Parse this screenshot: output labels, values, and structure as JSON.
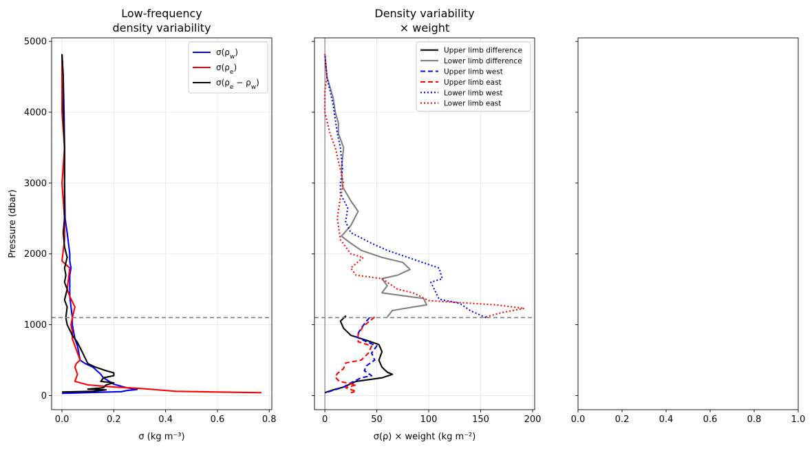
{
  "chart_data": [
    {
      "type": "line",
      "title_lines": [
        "Low-frequency",
        "density variability"
      ],
      "xlabel": "σ (kg m⁻³)",
      "ylabel": "Pressure (dbar)",
      "xlim": [
        -0.04,
        0.81
      ],
      "ylim": [
        -200,
        5050
      ],
      "xticks": [
        0.0,
        0.2,
        0.4,
        0.6,
        0.8
      ],
      "xtick_labels": [
        "0.0",
        "0.2",
        "0.4",
        "0.6",
        "0.8"
      ],
      "yticks": [
        0,
        1000,
        2000,
        3000,
        4000,
        5000
      ],
      "ytick_labels": [
        "0",
        "1000",
        "2000",
        "3000",
        "4000",
        "5000"
      ],
      "grid": true,
      "legend_position": "top-right",
      "hline": {
        "y": 1100,
        "color": "#808080",
        "dash": "dashed"
      },
      "series": [
        {
          "name": "σ(ρw)",
          "legend": {
            "base": "σ(ρ",
            "sub": "w",
            "tail": ")"
          },
          "color": "#0000ff",
          "dash": "solid",
          "points": [
            [
              0.0,
              4820
            ],
            [
              0.005,
              4500
            ],
            [
              0.008,
              4000
            ],
            [
              0.01,
              3500
            ],
            [
              0.01,
              3000
            ],
            [
              0.012,
              2500
            ],
            [
              0.02,
              2300
            ],
            [
              0.03,
              2000
            ],
            [
              0.03,
              1900
            ],
            [
              0.035,
              1800
            ],
            [
              0.03,
              1700
            ],
            [
              0.03,
              1500
            ],
            [
              0.03,
              1400
            ],
            [
              0.035,
              1250
            ],
            [
              0.04,
              1100
            ],
            [
              0.04,
              1000
            ],
            [
              0.045,
              900
            ],
            [
              0.05,
              800
            ],
            [
              0.06,
              700
            ],
            [
              0.065,
              600
            ],
            [
              0.07,
              500
            ],
            [
              0.09,
              450
            ],
            [
              0.12,
              400
            ],
            [
              0.15,
              300
            ],
            [
              0.16,
              250
            ],
            [
              0.2,
              160
            ],
            [
              0.25,
              110
            ],
            [
              0.29,
              85
            ],
            [
              0.25,
              70
            ],
            [
              0.23,
              55
            ],
            [
              0.18,
              50
            ],
            [
              0.0,
              30
            ]
          ]
        },
        {
          "name": "σ(ρe)",
          "legend": {
            "base": "σ(ρ",
            "sub": "e",
            "tail": ")"
          },
          "color": "#ff0000",
          "dash": "solid",
          "points": [
            [
              0.0,
              4800
            ],
            [
              0.0,
              4500
            ],
            [
              0.0,
              4000
            ],
            [
              0.01,
              3500
            ],
            [
              0.0,
              3000
            ],
            [
              0.01,
              2500
            ],
            [
              0.01,
              2200
            ],
            [
              0.0,
              1900
            ],
            [
              0.03,
              1800
            ],
            [
              0.02,
              1500
            ],
            [
              0.03,
              1400
            ],
            [
              0.05,
              1250
            ],
            [
              0.04,
              1100
            ],
            [
              0.035,
              1000
            ],
            [
              0.04,
              900
            ],
            [
              0.04,
              800
            ],
            [
              0.05,
              700
            ],
            [
              0.07,
              500
            ],
            [
              0.055,
              450
            ],
            [
              0.05,
              400
            ],
            [
              0.06,
              300
            ],
            [
              0.05,
              200
            ],
            [
              0.1,
              150
            ],
            [
              0.2,
              120
            ],
            [
              0.3,
              100
            ],
            [
              0.44,
              60
            ],
            [
              0.6,
              50
            ],
            [
              0.77,
              40
            ]
          ]
        },
        {
          "name": "σ(ρe − ρw)",
          "legend": {
            "base": "σ(ρ",
            "sub": "e",
            "mid": " − ρ",
            "sub2": "w",
            "tail": ")"
          },
          "color": "#000000",
          "dash": "solid",
          "points": [
            [
              0.0,
              4820
            ],
            [
              0.005,
              4500
            ],
            [
              0.005,
              4000
            ],
            [
              0.01,
              3500
            ],
            [
              0.01,
              3000
            ],
            [
              0.01,
              2500
            ],
            [
              0.005,
              2300
            ],
            [
              0.01,
              2100
            ],
            [
              0.02,
              1950
            ],
            [
              0.01,
              1800
            ],
            [
              0.015,
              1700
            ],
            [
              0.01,
              1600
            ],
            [
              0.02,
              1500
            ],
            [
              0.01,
              1350
            ],
            [
              0.02,
              1250
            ],
            [
              0.015,
              1100
            ],
            [
              0.02,
              1000
            ],
            [
              0.04,
              850
            ],
            [
              0.06,
              750
            ],
            [
              0.08,
              600
            ],
            [
              0.1,
              450
            ],
            [
              0.13,
              400
            ],
            [
              0.17,
              350
            ],
            [
              0.2,
              320
            ],
            [
              0.2,
              280
            ],
            [
              0.16,
              250
            ],
            [
              0.15,
              200
            ],
            [
              0.2,
              180
            ],
            [
              0.17,
              150
            ],
            [
              0.16,
              110
            ],
            [
              0.1,
              90
            ],
            [
              0.17,
              80
            ],
            [
              0.12,
              60
            ],
            [
              0.0,
              50
            ]
          ]
        }
      ]
    },
    {
      "type": "line",
      "title_lines": [
        "Density variability",
        "× weight"
      ],
      "xlabel": "σ(ρ) × weight (kg m⁻²)",
      "ylabel": "",
      "xlim": [
        -10,
        202
      ],
      "ylim": [
        -200,
        5050
      ],
      "xticks": [
        0,
        50,
        100,
        150,
        200
      ],
      "xtick_labels": [
        "0",
        "50",
        "100",
        "150",
        "200"
      ],
      "yticks": [
        0,
        1000,
        2000,
        3000,
        4000,
        5000
      ],
      "grid": true,
      "legend_position": "top-right",
      "hline": {
        "y": 1100,
        "color": "#808080",
        "dash": "dashed"
      },
      "vline": {
        "x": 0,
        "color": "#555555"
      },
      "series": [
        {
          "name": "Upper limb difference",
          "color": "#000000",
          "dash": "solid",
          "points": [
            [
              18,
              1100
            ],
            [
              20,
              1120
            ],
            [
              15,
              1050
            ],
            [
              18,
              950
            ],
            [
              25,
              850
            ],
            [
              40,
              780
            ],
            [
              52,
              720
            ],
            [
              55,
              620
            ],
            [
              52,
              500
            ],
            [
              55,
              400
            ],
            [
              60,
              330
            ],
            [
              65,
              300
            ],
            [
              55,
              250
            ],
            [
              30,
              200
            ],
            [
              18,
              120
            ],
            [
              8,
              80
            ],
            [
              0,
              40
            ]
          ]
        },
        {
          "name": "Lower limb difference",
          "color": "#808080",
          "dash": "solid",
          "points": [
            [
              60,
              1110
            ],
            [
              65,
              1200
            ],
            [
              85,
              1250
            ],
            [
              98,
              1280
            ],
            [
              95,
              1370
            ],
            [
              80,
              1400
            ],
            [
              55,
              1450
            ],
            [
              60,
              1550
            ],
            [
              55,
              1650
            ],
            [
              70,
              1700
            ],
            [
              82,
              1780
            ],
            [
              75,
              1880
            ],
            [
              55,
              1950
            ],
            [
              45,
              2000
            ],
            [
              35,
              2050
            ],
            [
              25,
              2150
            ],
            [
              16,
              2250
            ],
            [
              25,
              2400
            ],
            [
              32,
              2600
            ],
            [
              25,
              2750
            ],
            [
              17,
              2950
            ],
            [
              16,
              3200
            ],
            [
              18,
              3500
            ],
            [
              13,
              3700
            ],
            [
              13,
              3850
            ],
            [
              10,
              4000
            ],
            [
              8,
              4200
            ],
            [
              2,
              4500
            ],
            [
              0,
              4820
            ]
          ]
        },
        {
          "name": "Upper limb west",
          "color": "#0000ff",
          "dash": "dashed",
          "points": [
            [
              43,
              1100
            ],
            [
              40,
              1050
            ],
            [
              35,
              950
            ],
            [
              30,
              830
            ],
            [
              40,
              760
            ],
            [
              50,
              700
            ],
            [
              45,
              600
            ],
            [
              48,
              500
            ],
            [
              40,
              420
            ],
            [
              38,
              350
            ],
            [
              45,
              280
            ],
            [
              35,
              250
            ],
            [
              25,
              180
            ],
            [
              18,
              120
            ],
            [
              5,
              60
            ],
            [
              0,
              40
            ]
          ]
        },
        {
          "name": "Upper limb east",
          "color": "#ff0000",
          "dash": "dashed",
          "points": [
            [
              48,
              1110
            ],
            [
              44,
              1060
            ],
            [
              37,
              980
            ],
            [
              32,
              860
            ],
            [
              32,
              760
            ],
            [
              45,
              700
            ],
            [
              42,
              600
            ],
            [
              35,
              500
            ],
            [
              20,
              460
            ],
            [
              18,
              380
            ],
            [
              12,
              310
            ],
            [
              10,
              260
            ],
            [
              14,
              200
            ],
            [
              30,
              150
            ],
            [
              20,
              110
            ],
            [
              30,
              60
            ],
            [
              25,
              40
            ]
          ]
        },
        {
          "name": "Lower limb west",
          "color": "#0000ff",
          "dash": "dotted",
          "points": [
            [
              155,
              1100
            ],
            [
              140,
              1200
            ],
            [
              130,
              1300
            ],
            [
              110,
              1360
            ],
            [
              102,
              1600
            ],
            [
              113,
              1650
            ],
            [
              110,
              1800
            ],
            [
              80,
              1950
            ],
            [
              60,
              2050
            ],
            [
              45,
              2150
            ],
            [
              25,
              2300
            ],
            [
              20,
              2450
            ],
            [
              22,
              2650
            ],
            [
              15,
              2850
            ],
            [
              15,
              3000
            ],
            [
              17,
              3200
            ],
            [
              15,
              3500
            ],
            [
              12,
              3700
            ],
            [
              10,
              3900
            ],
            [
              8,
              4100
            ],
            [
              2,
              4500
            ],
            [
              0,
              4820
            ]
          ]
        },
        {
          "name": "Lower limb east",
          "color": "#ff0000",
          "dash": "dotted",
          "points": [
            [
              155,
              1110
            ],
            [
              170,
              1170
            ],
            [
              192,
              1230
            ],
            [
              165,
              1280
            ],
            [
              100,
              1340
            ],
            [
              85,
              1450
            ],
            [
              70,
              1500
            ],
            [
              55,
              1650
            ],
            [
              30,
              1700
            ],
            [
              25,
              1800
            ],
            [
              37,
              1950
            ],
            [
              25,
              2000
            ],
            [
              15,
              2200
            ],
            [
              12,
              2500
            ],
            [
              15,
              2800
            ],
            [
              18,
              3000
            ],
            [
              10,
              3500
            ],
            [
              5,
              3700
            ],
            [
              0,
              4000
            ],
            [
              0,
              4300
            ],
            [
              2,
              4500
            ],
            [
              0,
              4820
            ]
          ]
        }
      ]
    },
    {
      "type": "line",
      "title_lines": [],
      "xlabel": "",
      "ylabel": "",
      "xlim": [
        0,
        1
      ],
      "ylim": [
        -200,
        5050
      ],
      "xticks": [
        0.0,
        0.2,
        0.4,
        0.6,
        0.8,
        1.0
      ],
      "xtick_labels": [
        "0.0",
        "0.2",
        "0.4",
        "0.6",
        "0.8",
        "1.0"
      ],
      "yticks": [
        0,
        1000,
        2000,
        3000,
        4000,
        5000
      ],
      "grid": false,
      "series": []
    }
  ]
}
